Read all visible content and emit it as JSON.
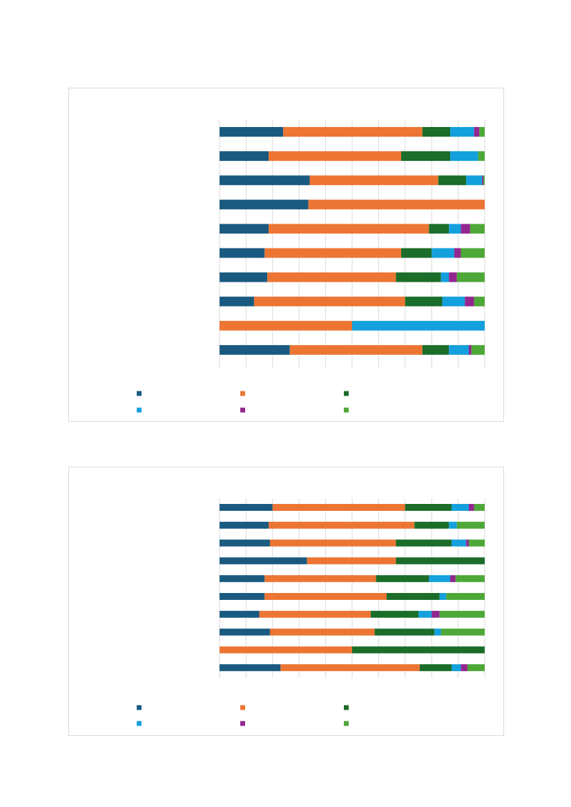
{
  "colors": {
    "s1": "#1a5a80",
    "s2": "#ec7534",
    "s3": "#1b6d2a",
    "s4": "#14a0dc",
    "s5": "#92278f",
    "s6": "#4ea838"
  },
  "chart_data": [
    {
      "type": "bar",
      "orientation": "horizontal",
      "stacked": true,
      "normalized": true,
      "xlim": [
        0,
        100
      ],
      "grid": true,
      "legend_position": "bottom",
      "categories": [
        "",
        "",
        "",
        "",
        "",
        "",
        "",
        "",
        "",
        ""
      ],
      "series": [
        {
          "color": "#1a5a80",
          "values": [
            24,
            18.5,
            34,
            33.5,
            18.5,
            17,
            18,
            13,
            0,
            26.5
          ]
        },
        {
          "color": "#ec7534",
          "values": [
            52.5,
            50,
            48.5,
            66.5,
            60.5,
            51.5,
            48.5,
            57,
            50,
            50
          ]
        },
        {
          "color": "#1b6d2a",
          "values": [
            10.5,
            18.5,
            10.5,
            0,
            7.5,
            11.5,
            17,
            14,
            0,
            10
          ]
        },
        {
          "color": "#14a0dc",
          "values": [
            9,
            10.5,
            6,
            0,
            4.5,
            8.5,
            3,
            8.5,
            50,
            7.5
          ]
        },
        {
          "color": "#92278f",
          "values": [
            2,
            0,
            0.5,
            0,
            3.5,
            2.5,
            3,
            3.5,
            0,
            1
          ]
        },
        {
          "color": "#4ea838",
          "values": [
            2,
            2.5,
            0.5,
            0,
            5.5,
            9,
            10.5,
            4,
            0,
            5
          ]
        }
      ]
    },
    {
      "type": "bar",
      "orientation": "horizontal",
      "stacked": true,
      "normalized": true,
      "xlim": [
        0,
        100
      ],
      "grid": true,
      "legend_position": "bottom",
      "categories": [
        "",
        "",
        "",
        "",
        "",
        "",
        "",
        "",
        "",
        ""
      ],
      "series": [
        {
          "color": "#1a5a80",
          "values": [
            20,
            18.5,
            19,
            33,
            17,
            17,
            15,
            19,
            0,
            23
          ]
        },
        {
          "color": "#ec7534",
          "values": [
            50,
            55,
            47.5,
            33.5,
            42,
            46,
            42,
            39.5,
            50,
            52.5
          ]
        },
        {
          "color": "#1b6d2a",
          "values": [
            17.5,
            13,
            21,
            33.5,
            20,
            20,
            18,
            22.5,
            50,
            12
          ]
        },
        {
          "color": "#14a0dc",
          "values": [
            6.5,
            3,
            5.5,
            0,
            8,
            2.5,
            5,
            2.5,
            0,
            3.5
          ]
        },
        {
          "color": "#92278f",
          "values": [
            2,
            0,
            1,
            0,
            2,
            0,
            3,
            0,
            0,
            2.5
          ]
        },
        {
          "color": "#4ea838",
          "values": [
            4,
            10.5,
            6,
            0,
            11,
            14.5,
            17,
            16.5,
            0,
            6.5
          ]
        }
      ]
    }
  ]
}
